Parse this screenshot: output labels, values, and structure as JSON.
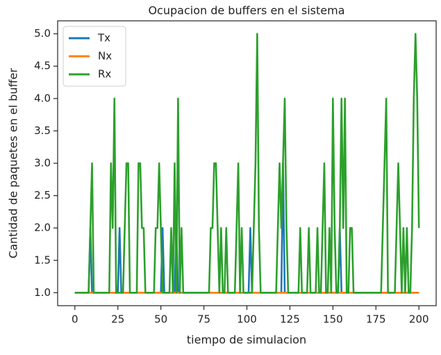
{
  "chart_data": {
    "type": "line",
    "title": "Ocupacion de buffers en el sistema",
    "xlabel": "tiempo de simulacion",
    "ylabel": "Cantidad de paquetes en el buffer",
    "x": [
      0,
      1,
      2,
      3,
      4,
      5,
      6,
      7,
      8,
      9,
      10,
      11,
      12,
      13,
      14,
      15,
      16,
      17,
      18,
      19,
      20,
      21,
      22,
      23,
      24,
      25,
      26,
      27,
      28,
      29,
      30,
      31,
      32,
      33,
      34,
      35,
      36,
      37,
      38,
      39,
      40,
      41,
      42,
      43,
      44,
      45,
      46,
      47,
      48,
      49,
      50,
      51,
      52,
      53,
      54,
      55,
      56,
      57,
      58,
      59,
      60,
      61,
      62,
      63,
      64,
      65,
      66,
      67,
      68,
      69,
      70,
      71,
      72,
      73,
      74,
      75,
      76,
      77,
      78,
      79,
      80,
      81,
      82,
      83,
      84,
      85,
      86,
      87,
      88,
      89,
      90,
      91,
      92,
      93,
      94,
      95,
      96,
      97,
      98,
      99,
      100,
      101,
      102,
      103,
      104,
      105,
      106,
      107,
      108,
      109,
      110,
      111,
      112,
      113,
      114,
      115,
      116,
      117,
      118,
      119,
      120,
      121,
      122,
      123,
      124,
      125,
      126,
      127,
      128,
      129,
      130,
      131,
      132,
      133,
      134,
      135,
      136,
      137,
      138,
      139,
      140,
      141,
      142,
      143,
      144,
      145,
      146,
      147,
      148,
      149,
      150,
      151,
      152,
      153,
      154,
      155,
      156,
      157,
      158,
      159,
      160,
      161,
      162,
      163,
      164,
      165,
      166,
      167,
      168,
      169,
      170,
      171,
      172,
      173,
      174,
      175,
      176,
      177,
      178,
      179,
      180,
      181,
      182,
      183,
      184,
      185,
      186,
      187,
      188,
      189,
      190,
      191,
      192,
      193,
      194,
      195,
      196,
      197,
      198,
      199,
      200
    ],
    "series": [
      {
        "name": "Tx",
        "color": "#1f77b4",
        "values": [
          1,
          1,
          1,
          1,
          1,
          1,
          1,
          1,
          1,
          2,
          1,
          1,
          1,
          1,
          1,
          1,
          1,
          1,
          1,
          1,
          1,
          1,
          1,
          1,
          1,
          1,
          2,
          1,
          1,
          1,
          1,
          1,
          1,
          1,
          1,
          1,
          1,
          1,
          1,
          1,
          1,
          1,
          1,
          1,
          1,
          1,
          1,
          1,
          1,
          1,
          1,
          2,
          1,
          1,
          1,
          1,
          1,
          1,
          1,
          2,
          1,
          1,
          1,
          1,
          1,
          1,
          1,
          1,
          1,
          1,
          1,
          1,
          1,
          1,
          1,
          1,
          1,
          1,
          1,
          1,
          1,
          1,
          1,
          1,
          1,
          1,
          1,
          1,
          1,
          1,
          1,
          1,
          1,
          1,
          1,
          1,
          1,
          1,
          1,
          1,
          1,
          1,
          2,
          1,
          1,
          1,
          1,
          1,
          1,
          1,
          1,
          1,
          1,
          1,
          1,
          1,
          1,
          1,
          1,
          1,
          1,
          3,
          1,
          1,
          1,
          1,
          1,
          1,
          1,
          1,
          1,
          1,
          1,
          1,
          1,
          1,
          1,
          1,
          1,
          1,
          1,
          1,
          1,
          1,
          1,
          1,
          1,
          1,
          1,
          1,
          1,
          1,
          1,
          1,
          2,
          1,
          1,
          1,
          1,
          1,
          1,
          1,
          1,
          1,
          1,
          1,
          1,
          1,
          1,
          1,
          1,
          1,
          1,
          1,
          1,
          1,
          1,
          1,
          1,
          1,
          1,
          1,
          1,
          1,
          1,
          1,
          1,
          1,
          1,
          1,
          1,
          1,
          1,
          1,
          1,
          1,
          1,
          1,
          1,
          1,
          1
        ]
      },
      {
        "name": "Nx",
        "color": "#ff7f0e",
        "values": [
          1,
          1,
          1,
          1,
          1,
          1,
          1,
          1,
          1,
          1,
          1,
          1,
          1,
          1,
          1,
          1,
          1,
          1,
          1,
          1,
          1,
          1,
          1,
          1,
          1,
          1,
          1,
          1,
          1,
          1,
          1,
          1,
          1,
          1,
          1,
          1,
          1,
          1,
          1,
          1,
          1,
          1,
          1,
          1,
          1,
          1,
          1,
          1,
          1,
          1,
          1,
          1,
          1,
          1,
          1,
          1,
          1,
          1,
          1,
          1,
          1,
          1,
          1,
          1,
          1,
          1,
          1,
          1,
          1,
          1,
          1,
          1,
          1,
          1,
          1,
          1,
          1,
          1,
          1,
          1,
          1,
          1,
          1,
          1,
          1,
          1,
          1,
          1,
          1,
          1,
          1,
          1,
          1,
          1,
          1,
          1,
          1,
          1,
          1,
          1,
          1,
          1,
          1,
          1,
          1,
          1,
          1,
          1,
          1,
          1,
          1,
          1,
          1,
          1,
          1,
          1,
          1,
          1,
          1,
          1,
          1,
          1,
          1,
          1,
          1,
          1,
          1,
          1,
          1,
          1,
          1,
          1,
          1,
          1,
          1,
          1,
          1,
          1,
          1,
          1,
          1,
          1,
          1,
          1,
          1,
          1,
          1,
          1,
          1,
          1,
          1,
          1,
          1,
          1,
          1,
          1,
          1,
          1,
          1,
          1,
          1,
          1,
          1,
          1,
          1,
          1,
          1,
          1,
          1,
          1,
          1,
          1,
          1,
          1,
          1,
          1,
          1,
          1,
          1,
          1,
          1,
          1,
          1,
          1,
          1,
          1,
          1,
          1,
          1,
          1,
          1,
          1,
          1,
          1,
          1,
          1,
          1,
          1,
          1,
          1,
          1
        ]
      },
      {
        "name": "Rx",
        "color": "#2ca02c",
        "values": [
          1,
          1,
          1,
          1,
          1,
          1,
          1,
          1,
          1,
          2,
          3,
          1,
          1,
          1,
          1,
          1,
          1,
          1,
          1,
          1,
          1,
          3,
          2,
          4,
          1,
          1,
          1,
          1,
          1,
          2,
          3,
          3,
          1,
          1,
          1,
          1,
          1,
          3,
          3,
          2,
          2,
          1,
          1,
          1,
          1,
          1,
          1,
          2,
          2,
          3,
          2,
          1,
          1,
          1,
          1,
          1,
          2,
          1,
          3,
          1,
          4,
          1,
          2,
          1,
          1,
          1,
          1,
          1,
          1,
          1,
          1,
          1,
          1,
          1,
          1,
          1,
          1,
          1,
          1,
          2,
          2,
          3,
          3,
          2,
          1,
          2,
          1,
          1,
          2,
          1,
          1,
          1,
          1,
          1,
          2,
          3,
          1,
          2,
          1,
          1,
          1,
          1,
          1,
          1,
          2,
          3,
          5,
          2,
          1,
          1,
          1,
          1,
          1,
          1,
          1,
          1,
          1,
          1,
          2,
          3,
          2,
          3,
          4,
          2,
          1,
          1,
          1,
          1,
          1,
          1,
          1,
          2,
          1,
          1,
          1,
          1,
          2,
          1,
          1,
          1,
          1,
          2,
          1,
          1,
          2,
          3,
          1,
          1,
          2,
          1,
          4,
          2,
          1,
          1,
          2,
          4,
          2,
          4,
          1,
          1,
          2,
          2,
          1,
          1,
          1,
          1,
          1,
          1,
          1,
          1,
          1,
          1,
          1,
          1,
          1,
          1,
          1,
          1,
          1,
          2,
          3,
          4,
          1,
          1,
          1,
          1,
          1,
          2,
          3,
          2,
          1,
          2,
          1,
          2,
          1,
          1,
          2,
          4,
          5,
          4,
          2
        ]
      }
    ],
    "xlim": [
      -10,
      210
    ],
    "xticks": [
      0,
      25,
      50,
      75,
      100,
      125,
      150,
      175,
      200
    ],
    "ylim": [
      0.8,
      5.2
    ],
    "yticks": [
      {
        "value": 1,
        "label": "1.0"
      },
      1.5,
      {
        "value": 2,
        "label": "2.0"
      },
      2.5,
      {
        "value": 3,
        "label": "3.0"
      },
      3.5,
      {
        "value": 4,
        "label": "4.0"
      },
      4.5,
      {
        "value": 5,
        "label": "5.0"
      }
    ],
    "legend": "upper left",
    "grid": false
  }
}
